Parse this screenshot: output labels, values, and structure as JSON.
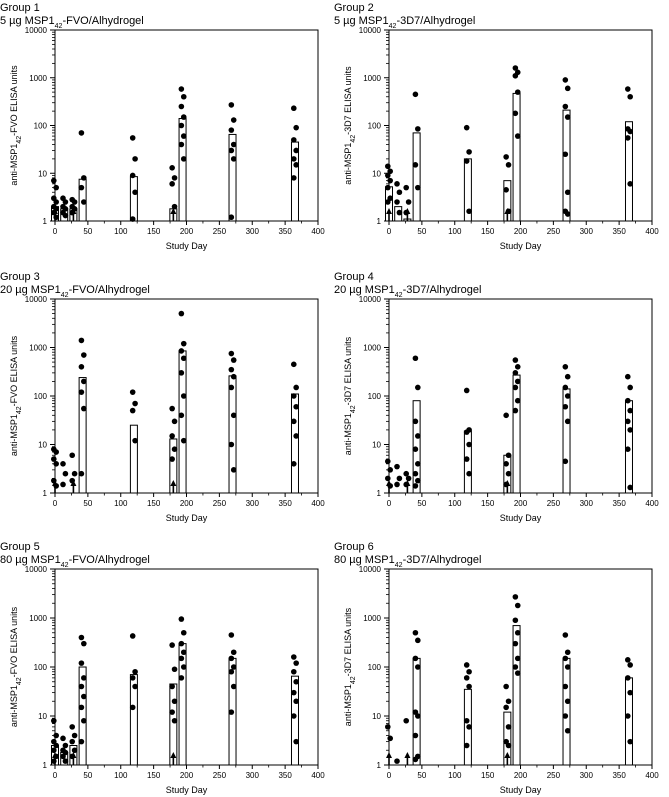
{
  "figure": {
    "xlabel": "Study Day",
    "panels": [
      {
        "title": "Group 1",
        "subtitle": {
          "pre": "5 µg MSP1",
          "sub": "42",
          "post": "-FVO/Alhydrogel"
        },
        "ylabel": {
          "pre": "anti-MSP1",
          "sub": "42",
          "post": "-FVO  ELISA units"
        }
      },
      {
        "title": "Group 2",
        "subtitle": {
          "pre": "5 µg MSP1",
          "sub": "42",
          "post": "-3D7/Alhydrogel"
        },
        "ylabel": {
          "pre": "anti-MSP1",
          "sub": "42",
          "post": "-3D7  ELISA units"
        }
      },
      {
        "title": "Group 3",
        "subtitle": {
          "pre": "20 µg MSP1",
          "sub": "42",
          "post": "-FVO/Alhydrogel"
        },
        "ylabel": {
          "pre": "anti-MSP1",
          "sub": "42",
          "post": "-FVO  ELISA units"
        }
      },
      {
        "title": "Group 4",
        "subtitle": {
          "pre": "20 µg MSP1",
          "sub": "42",
          "post": "-3D7/Alhydrogel"
        },
        "ylabel": {
          "pre": "anti-MSP1",
          "sub": "42",
          "post": "-3D7  ELISA units"
        }
      },
      {
        "title": "Group 5",
        "subtitle": {
          "pre": "80 µg MSP1",
          "sub": "42",
          "post": "-FVO/Alhydrogel"
        },
        "ylabel": {
          "pre": "anti-MSP1",
          "sub": "42",
          "post": "-FVO  ELISA units"
        }
      },
      {
        "title": "Group 6",
        "subtitle": {
          "pre": "80 µg MSP1",
          "sub": "42",
          "post": "-3D7/Alhydrogel"
        },
        "ylabel": {
          "pre": "anti-MSP1",
          "sub": "42",
          "post": "-3D7  ELISA units"
        }
      }
    ]
  },
  "chart_data": [
    {
      "type": "bar",
      "title": "Group 1 — 5 µg MSP142-FVO/Alhydrogel",
      "xlabel": "Study Day",
      "ylabel": "anti-MSP142-FVO  ELISA units",
      "xlim": [
        0,
        400
      ],
      "xticks": [
        0,
        50,
        100,
        150,
        200,
        250,
        300,
        350,
        400
      ],
      "ylim": [
        1,
        10000
      ],
      "yscale": "log",
      "yticks": [
        1,
        10,
        100,
        1000,
        10000
      ],
      "ytick_labels": [
        "1",
        "10",
        "100",
        "1000",
        "10000"
      ],
      "vaccination_days": [
        0,
        28,
        180
      ],
      "bars": [
        {
          "day": 0,
          "value": 2.0
        },
        {
          "day": 14,
          "value": 1.8
        },
        {
          "day": 28,
          "value": 1.8
        },
        {
          "day": 42,
          "value": 7.5
        },
        {
          "day": 120,
          "value": 8.5
        },
        {
          "day": 180,
          "value": 1.8
        },
        {
          "day": 194,
          "value": 140
        },
        {
          "day": 270,
          "value": 65
        },
        {
          "day": 365,
          "value": 45
        }
      ],
      "points": [
        {
          "day": 0,
          "values": [
            7,
            5,
            3,
            2.5,
            2,
            1.8,
            1.5,
            1.2
          ]
        },
        {
          "day": 14,
          "values": [
            3,
            2.5,
            2,
            1.8,
            1.5,
            1.3
          ]
        },
        {
          "day": 28,
          "values": [
            2.8,
            2.5,
            2,
            1.8,
            1.5
          ]
        },
        {
          "day": 42,
          "values": [
            70,
            8,
            5,
            2.5
          ]
        },
        {
          "day": 120,
          "values": [
            55,
            20,
            9,
            4,
            1.1
          ]
        },
        {
          "day": 180,
          "values": [
            13,
            8,
            6,
            2
          ]
        },
        {
          "day": 194,
          "values": [
            580,
            400,
            250,
            150,
            100,
            60,
            40,
            20
          ]
        },
        {
          "day": 270,
          "values": [
            270,
            130,
            80,
            40,
            30,
            20,
            1.2
          ]
        },
        {
          "day": 365,
          "values": [
            230,
            90,
            50,
            30,
            20,
            15,
            8
          ]
        }
      ]
    },
    {
      "type": "bar",
      "title": "Group 2 — 5 µg MSP142-3D7/Alhydrogel",
      "xlabel": "Study Day",
      "ylabel": "anti-MSP142-3D7  ELISA units",
      "xlim": [
        0,
        400
      ],
      "xticks": [
        0,
        50,
        100,
        150,
        200,
        250,
        300,
        350,
        400
      ],
      "ylim": [
        1,
        10000
      ],
      "yscale": "log",
      "yticks": [
        1,
        10,
        100,
        1000,
        10000
      ],
      "ytick_labels": [
        "1",
        "10",
        "100",
        "1000",
        "10000"
      ],
      "vaccination_days": [
        0,
        28,
        180
      ],
      "bars": [
        {
          "day": 0,
          "value": 5.2
        },
        {
          "day": 14,
          "value": 2.0
        },
        {
          "day": 28,
          "value": 1.1
        },
        {
          "day": 42,
          "value": 70
        },
        {
          "day": 120,
          "value": 20
        },
        {
          "day": 180,
          "value": 7
        },
        {
          "day": 194,
          "value": 470
        },
        {
          "day": 270,
          "value": 210
        },
        {
          "day": 365,
          "value": 120
        }
      ],
      "points": [
        {
          "day": 0,
          "values": [
            14,
            11,
            9,
            7,
            5,
            3,
            2.5
          ]
        },
        {
          "day": 14,
          "values": [
            6,
            4,
            2.5,
            1.5
          ]
        },
        {
          "day": 28,
          "values": [
            5,
            2.5,
            1.5
          ]
        },
        {
          "day": 42,
          "values": [
            450,
            85,
            15,
            5
          ]
        },
        {
          "day": 120,
          "values": [
            90,
            28,
            18,
            1.6
          ]
        },
        {
          "day": 180,
          "values": [
            22,
            15,
            4.5,
            1.6
          ]
        },
        {
          "day": 194,
          "values": [
            1600,
            1300,
            1100,
            500,
            180,
            60
          ]
        },
        {
          "day": 270,
          "values": [
            900,
            600,
            250,
            150,
            25,
            4,
            1.6,
            1.4
          ]
        },
        {
          "day": 365,
          "values": [
            580,
            400,
            85,
            75,
            55,
            6
          ]
        }
      ]
    },
    {
      "type": "bar",
      "title": "Group 3 — 20 µg MSP142-FVO/Alhydrogel",
      "xlabel": "Study Day",
      "ylabel": "anti-MSP142-FVO  ELISA units",
      "xlim": [
        0,
        400
      ],
      "xticks": [
        0,
        50,
        100,
        150,
        200,
        250,
        300,
        350,
        400
      ],
      "ylim": [
        1,
        10000
      ],
      "yscale": "log",
      "yticks": [
        1,
        10,
        100,
        1000,
        10000
      ],
      "ytick_labels": [
        "1",
        "10",
        "100",
        "1000",
        "10000"
      ],
      "vaccination_days": [
        0,
        28,
        180
      ],
      "bars": [
        {
          "day": 0,
          "value": 1.0
        },
        {
          "day": 14,
          "value": 1.0
        },
        {
          "day": 28,
          "value": 1.0
        },
        {
          "day": 42,
          "value": 240
        },
        {
          "day": 120,
          "value": 25
        },
        {
          "day": 180,
          "value": 13
        },
        {
          "day": 194,
          "value": 850
        },
        {
          "day": 270,
          "value": 260
        },
        {
          "day": 365,
          "value": 110
        }
      ],
      "points": [
        {
          "day": 0,
          "values": [
            8,
            7,
            5,
            4,
            1.8,
            1.4
          ]
        },
        {
          "day": 14,
          "values": [
            4,
            2.5,
            1.5
          ]
        },
        {
          "day": 28,
          "values": [
            6,
            2.5,
            1.8
          ]
        },
        {
          "day": 42,
          "values": [
            1400,
            700,
            400,
            200,
            120,
            55,
            2.5
          ]
        },
        {
          "day": 120,
          "values": [
            120,
            70,
            50,
            12
          ]
        },
        {
          "day": 180,
          "values": [
            55,
            30,
            15,
            8,
            5
          ]
        },
        {
          "day": 194,
          "values": [
            5000,
            1200,
            850,
            600,
            300,
            100,
            40,
            12
          ]
        },
        {
          "day": 270,
          "values": [
            750,
            550,
            350,
            250,
            150,
            40,
            10,
            3
          ]
        },
        {
          "day": 365,
          "values": [
            450,
            150,
            100,
            60,
            30,
            15,
            4
          ]
        }
      ]
    },
    {
      "type": "bar",
      "title": "Group 4 — 20 µg MSP142-3D7/Alhydrogel",
      "xlabel": "Study Day",
      "ylabel": "anti-MSP142-3D7  ELISA units",
      "xlim": [
        0,
        400
      ],
      "xticks": [
        0,
        50,
        100,
        150,
        200,
        250,
        300,
        350,
        400
      ],
      "ylim": [
        1,
        10000
      ],
      "yscale": "log",
      "yticks": [
        1,
        10,
        100,
        1000,
        10000
      ],
      "ytick_labels": [
        "1",
        "10",
        "100",
        "1000",
        "10000"
      ],
      "vaccination_days": [
        0,
        28,
        180
      ],
      "bars": [
        {
          "day": 0,
          "value": 1.0
        },
        {
          "day": 14,
          "value": 1.0
        },
        {
          "day": 28,
          "value": 1.0
        },
        {
          "day": 42,
          "value": 80
        },
        {
          "day": 120,
          "value": 19
        },
        {
          "day": 180,
          "value": 6
        },
        {
          "day": 194,
          "value": 270
        },
        {
          "day": 270,
          "value": 140
        },
        {
          "day": 365,
          "value": 80
        }
      ],
      "points": [
        {
          "day": 0,
          "values": [
            4.5,
            3,
            2,
            1.4
          ]
        },
        {
          "day": 14,
          "values": [
            3.5,
            2,
            1.5
          ]
        },
        {
          "day": 28,
          "values": [
            2.5,
            2,
            1.5
          ]
        },
        {
          "day": 42,
          "values": [
            600,
            150,
            30,
            15,
            8,
            4,
            2.5,
            1.8,
            1.4
          ]
        },
        {
          "day": 120,
          "values": [
            130,
            20,
            18,
            10,
            5,
            2.5
          ]
        },
        {
          "day": 180,
          "values": [
            40,
            6,
            4,
            2.5,
            1.5
          ]
        },
        {
          "day": 194,
          "values": [
            550,
            400,
            300,
            200,
            150,
            80,
            50
          ]
        },
        {
          "day": 270,
          "values": [
            400,
            250,
            150,
            100,
            60,
            30,
            4.5
          ]
        },
        {
          "day": 365,
          "values": [
            250,
            150,
            80,
            50,
            30,
            20,
            8,
            1.3
          ]
        }
      ]
    },
    {
      "type": "bar",
      "title": "Group 5 — 80 µg MSP142-FVO/Alhydrogel",
      "xlabel": "Study Day",
      "ylabel": "anti-MSP142-FVO  ELISA units",
      "xlim": [
        0,
        400
      ],
      "xticks": [
        0,
        50,
        100,
        150,
        200,
        250,
        300,
        350,
        400
      ],
      "ylim": [
        1,
        10000
      ],
      "yscale": "log",
      "yticks": [
        1,
        10,
        100,
        1000,
        10000
      ],
      "ytick_labels": [
        "1",
        "10",
        "100",
        "1000",
        "10000"
      ],
      "vaccination_days": [
        0,
        28,
        180
      ],
      "bars": [
        {
          "day": 0,
          "value": 2.5
        },
        {
          "day": 14,
          "value": 1.8
        },
        {
          "day": 28,
          "value": 2.5
        },
        {
          "day": 42,
          "value": 100
        },
        {
          "day": 120,
          "value": 70
        },
        {
          "day": 180,
          "value": 45
        },
        {
          "day": 194,
          "value": 300
        },
        {
          "day": 270,
          "value": 150
        },
        {
          "day": 365,
          "value": 65
        }
      ],
      "points": [
        {
          "day": 0,
          "values": [
            8,
            4,
            3,
            2.5,
            2,
            1.5,
            1.2
          ]
        },
        {
          "day": 14,
          "values": [
            3.5,
            2.5,
            2,
            1.8,
            1.5,
            1.2
          ]
        },
        {
          "day": 28,
          "values": [
            6,
            4,
            3,
            2,
            1.5
          ]
        },
        {
          "day": 42,
          "values": [
            400,
            300,
            120,
            60,
            40,
            25,
            15,
            8,
            3
          ]
        },
        {
          "day": 120,
          "values": [
            430,
            80,
            60,
            40,
            15
          ]
        },
        {
          "day": 180,
          "values": [
            280,
            90,
            40,
            20,
            12,
            8
          ]
        },
        {
          "day": 194,
          "values": [
            950,
            500,
            300,
            200,
            150,
            100,
            60
          ]
        },
        {
          "day": 270,
          "values": [
            450,
            200,
            150,
            100,
            80,
            40,
            12
          ]
        },
        {
          "day": 365,
          "values": [
            160,
            120,
            80,
            50,
            30,
            20,
            10,
            3
          ]
        }
      ]
    },
    {
      "type": "bar",
      "title": "Group 6 — 80 µg MSP142-3D7/Alhydrogel",
      "xlabel": "Study Day",
      "ylabel": "anti-MSP142-3D7  ELISA units",
      "xlim": [
        0,
        400
      ],
      "xticks": [
        0,
        50,
        100,
        150,
        200,
        250,
        300,
        350,
        400
      ],
      "ylim": [
        1,
        10000
      ],
      "yscale": "log",
      "yticks": [
        1,
        10,
        100,
        1000,
        10000
      ],
      "ytick_labels": [
        "1",
        "10",
        "100",
        "1000",
        "10000"
      ],
      "vaccination_days": [
        0,
        28,
        180
      ],
      "bars": [
        {
          "day": 0,
          "value": 1.0
        },
        {
          "day": 14,
          "value": 1.0
        },
        {
          "day": 28,
          "value": 1.0
        },
        {
          "day": 42,
          "value": 150
        },
        {
          "day": 120,
          "value": 35
        },
        {
          "day": 180,
          "value": 12
        },
        {
          "day": 194,
          "value": 700
        },
        {
          "day": 270,
          "value": 150
        },
        {
          "day": 365,
          "value": 60
        }
      ],
      "points": [
        {
          "day": 0,
          "values": [
            6,
            3.5
          ]
        },
        {
          "day": 14,
          "values": [
            1.2
          ]
        },
        {
          "day": 28,
          "values": [
            8
          ]
        },
        {
          "day": 42,
          "values": [
            500,
            350,
            150,
            100,
            12,
            10,
            4,
            1.5,
            1.3
          ]
        },
        {
          "day": 120,
          "values": [
            110,
            80,
            60,
            40,
            8,
            6,
            2.5
          ]
        },
        {
          "day": 180,
          "values": [
            40,
            20,
            15,
            6,
            3,
            2.5
          ]
        },
        {
          "day": 194,
          "values": [
            2700,
            1800,
            900,
            500,
            300,
            150,
            100,
            75
          ]
        },
        {
          "day": 270,
          "values": [
            450,
            200,
            150,
            100,
            40,
            20,
            10,
            5
          ]
        },
        {
          "day": 365,
          "values": [
            140,
            110,
            60,
            30,
            10,
            3
          ]
        }
      ]
    }
  ]
}
